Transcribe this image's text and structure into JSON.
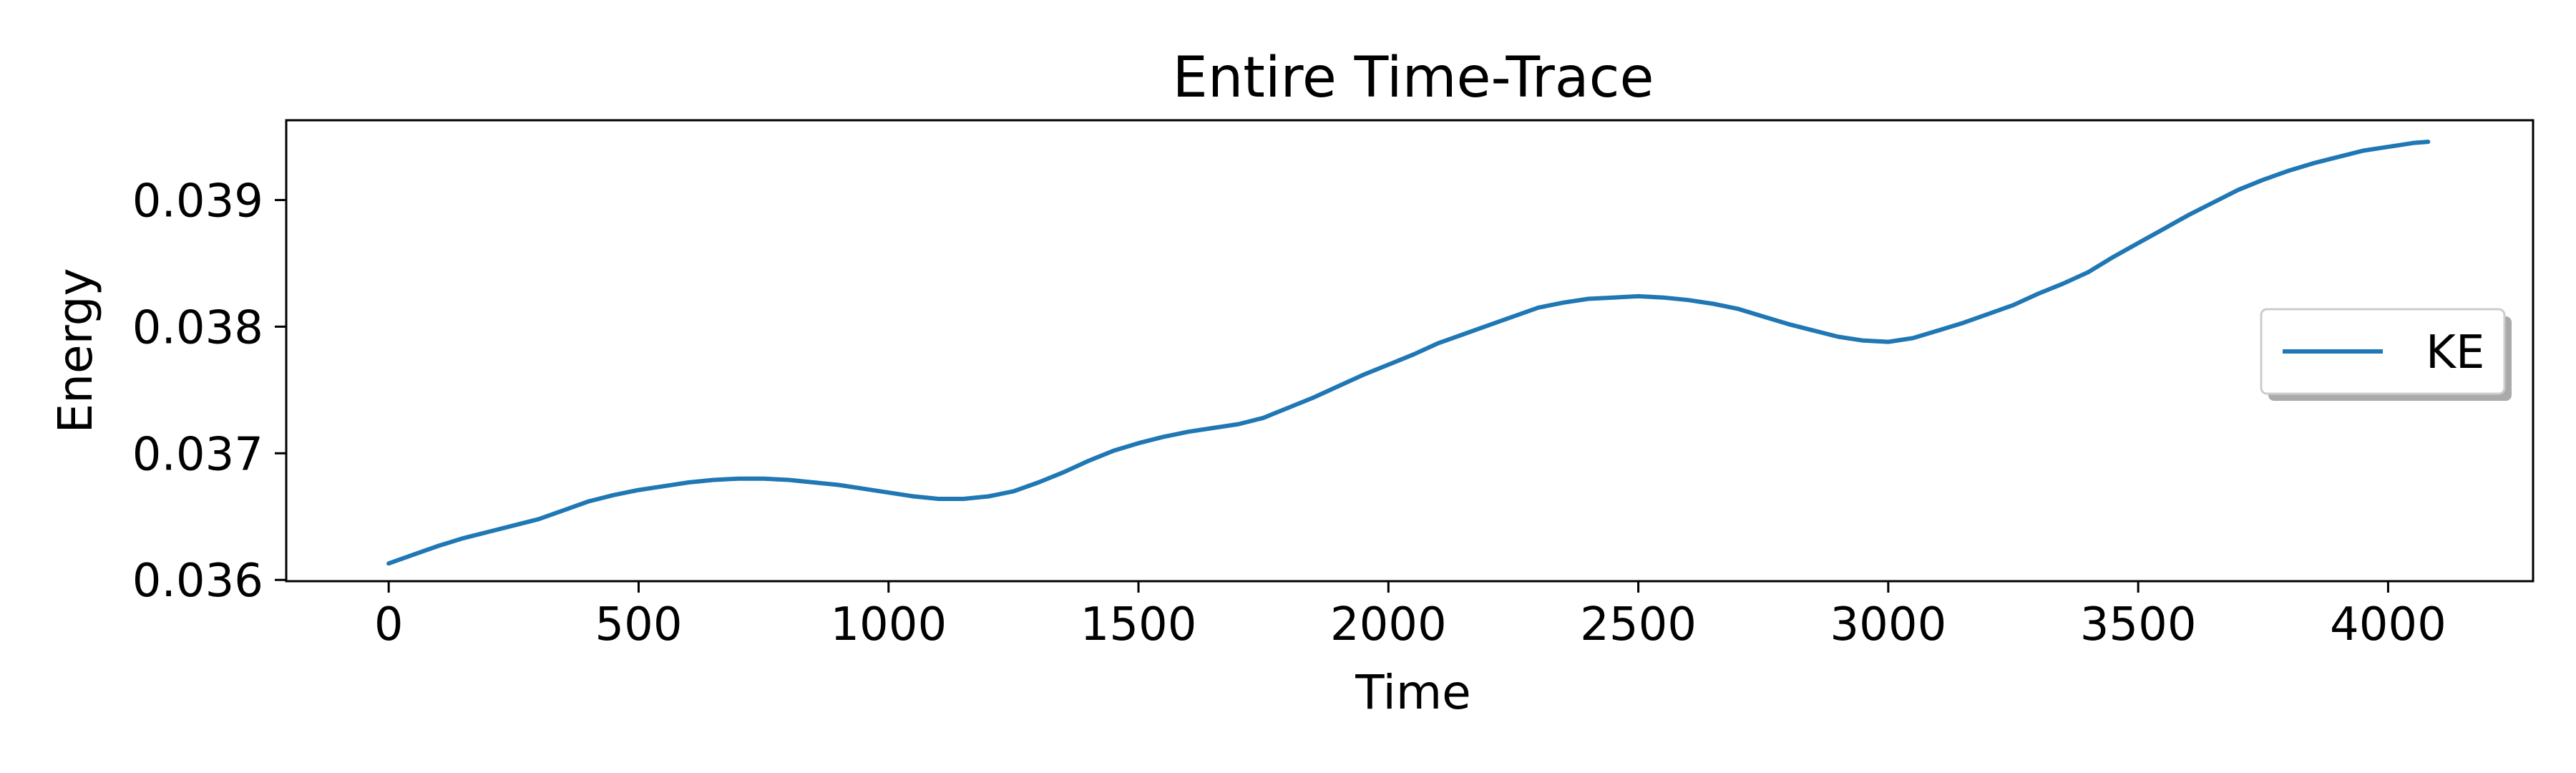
{
  "chart_data": {
    "type": "line",
    "title": "Entire Time-Trace",
    "xlabel": "Time",
    "ylabel": "Energy",
    "xlim": [
      -205,
      4290
    ],
    "ylim": [
      0.03599,
      0.03963
    ],
    "xticks": [
      0,
      500,
      1000,
      1500,
      2000,
      2500,
      3000,
      3500,
      4000
    ],
    "yticks": [
      0.036,
      0.037,
      0.038,
      0.039
    ],
    "ytick_labels": [
      "0.036",
      "0.037",
      "0.038",
      "0.039"
    ],
    "grid": false,
    "legend": {
      "placement": "center-right",
      "entries": [
        "KE"
      ]
    },
    "series": [
      {
        "name": "KE",
        "color": "#1f77b4",
        "x": [
          0,
          50,
          100,
          150,
          200,
          250,
          300,
          350,
          400,
          450,
          500,
          550,
          600,
          650,
          700,
          750,
          800,
          850,
          900,
          950,
          1000,
          1050,
          1100,
          1150,
          1200,
          1250,
          1300,
          1350,
          1400,
          1450,
          1500,
          1550,
          1600,
          1650,
          1700,
          1750,
          1800,
          1850,
          1900,
          1950,
          2000,
          2050,
          2100,
          2150,
          2200,
          2250,
          2300,
          2350,
          2400,
          2450,
          2500,
          2550,
          2600,
          2650,
          2700,
          2750,
          2800,
          2850,
          2900,
          2950,
          3000,
          3050,
          3100,
          3150,
          3200,
          3250,
          3300,
          3350,
          3400,
          3450,
          3500,
          3550,
          3600,
          3650,
          3700,
          3750,
          3800,
          3850,
          3900,
          3950,
          4000,
          4050,
          4080
        ],
        "y": [
          0.03613,
          0.0362,
          0.03627,
          0.03633,
          0.03638,
          0.03643,
          0.03648,
          0.03655,
          0.03662,
          0.03667,
          0.03671,
          0.03674,
          0.03677,
          0.03679,
          0.0368,
          0.0368,
          0.03679,
          0.03677,
          0.03675,
          0.03672,
          0.03669,
          0.03666,
          0.03664,
          0.03664,
          0.03666,
          0.0367,
          0.03677,
          0.03685,
          0.03694,
          0.03702,
          0.03708,
          0.03713,
          0.03717,
          0.0372,
          0.03723,
          0.03728,
          0.03736,
          0.03744,
          0.03753,
          0.03762,
          0.0377,
          0.03778,
          0.03787,
          0.03794,
          0.03801,
          0.03808,
          0.03815,
          0.03819,
          0.03822,
          0.03823,
          0.03824,
          0.03823,
          0.03821,
          0.03818,
          0.03814,
          0.03808,
          0.03802,
          0.03797,
          0.03792,
          0.03789,
          0.03788,
          0.03791,
          0.03797,
          0.03803,
          0.0381,
          0.03817,
          0.03826,
          0.03834,
          0.03843,
          0.03855,
          0.03866,
          0.03877,
          0.03888,
          0.03898,
          0.03908,
          0.03916,
          0.03923,
          0.03929,
          0.03934,
          0.03939,
          0.03942,
          0.03945,
          0.03946
        ]
      }
    ]
  }
}
